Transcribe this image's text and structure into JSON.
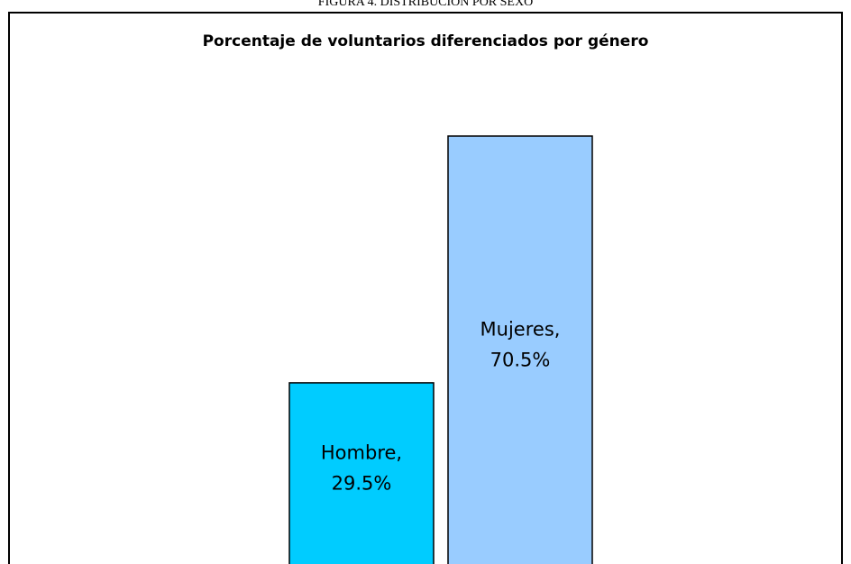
{
  "figure_caption": "FIGURA 4. DISTRIBUCIÓN POR SEXO",
  "chart_data": {
    "type": "bar",
    "title": "Porcentaje de voluntarios diferenciados por género",
    "categories": [
      "Hombre,",
      "Mujeres,"
    ],
    "values": [
      29.5,
      70.5
    ],
    "value_labels": [
      "29.5%",
      "70.5%"
    ],
    "colors": [
      "#00ccff",
      "#99ccff"
    ]
  }
}
